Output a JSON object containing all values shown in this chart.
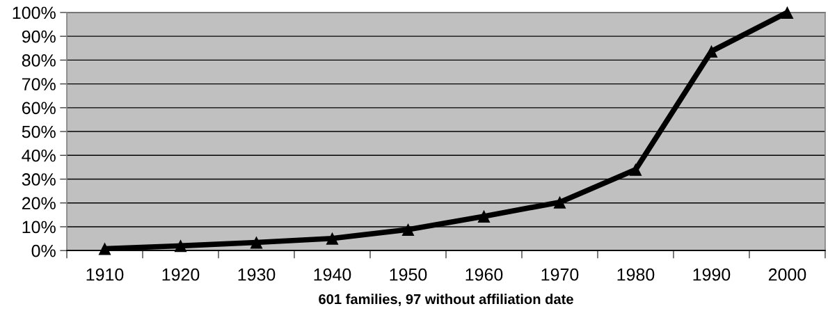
{
  "chart_data": {
    "type": "line",
    "xlabel": "601 families, 97 without affiliation date",
    "categories": [
      "1910",
      "1920",
      "1930",
      "1940",
      "1950",
      "1960",
      "1970",
      "1980",
      "1990",
      "2000"
    ],
    "series": [
      {
        "color": "#000000",
        "values": [
          0.8,
          2,
          3.4,
          5.1,
          8.8,
          14.4,
          20.3,
          34,
          83.7,
          100
        ]
      }
    ],
    "ylim": [
      0,
      100
    ],
    "yticks": [
      {
        "value": 0,
        "label": "0%"
      },
      {
        "value": 10,
        "label": "10%"
      },
      {
        "value": 20,
        "label": "20%"
      },
      {
        "value": 30,
        "label": "30%"
      },
      {
        "value": 40,
        "label": "40%"
      },
      {
        "value": 50,
        "label": "50%"
      },
      {
        "value": 60,
        "label": "60%"
      },
      {
        "value": 70,
        "label": "70%"
      },
      {
        "value": 80,
        "label": "80%"
      },
      {
        "value": 90,
        "label": "90%"
      },
      {
        "value": 100,
        "label": "100%"
      }
    ],
    "grid": "y",
    "marker": "triangle",
    "line_style": "solid"
  }
}
